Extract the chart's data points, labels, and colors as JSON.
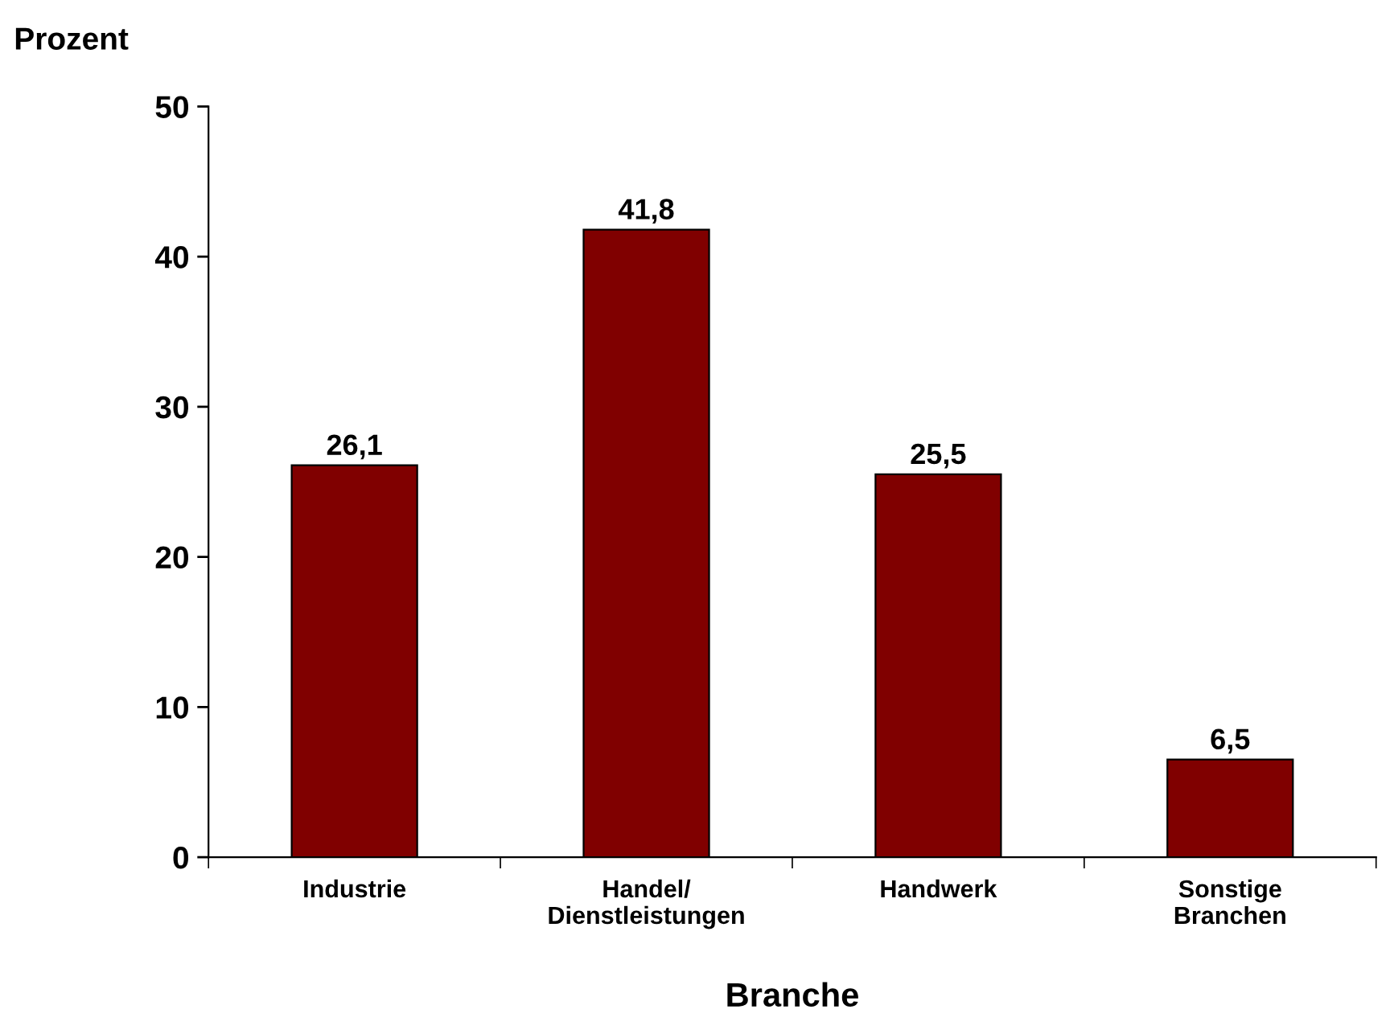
{
  "chart_data": {
    "type": "bar",
    "ylabel": "Prozent",
    "xlabel": "Branche",
    "categories": [
      "Industrie",
      "Handel/\nDienstleistungen",
      "Handwerk",
      "Sonstige\nBranchen"
    ],
    "values": [
      26.1,
      41.8,
      25.5,
      6.5
    ],
    "value_labels": [
      "26,1",
      "41,8",
      "25,5",
      "6,5"
    ],
    "color": "#800000",
    "ylim": [
      0,
      50
    ],
    "yticks": [
      0,
      10,
      20,
      30,
      40,
      50
    ],
    "grid": false
  }
}
